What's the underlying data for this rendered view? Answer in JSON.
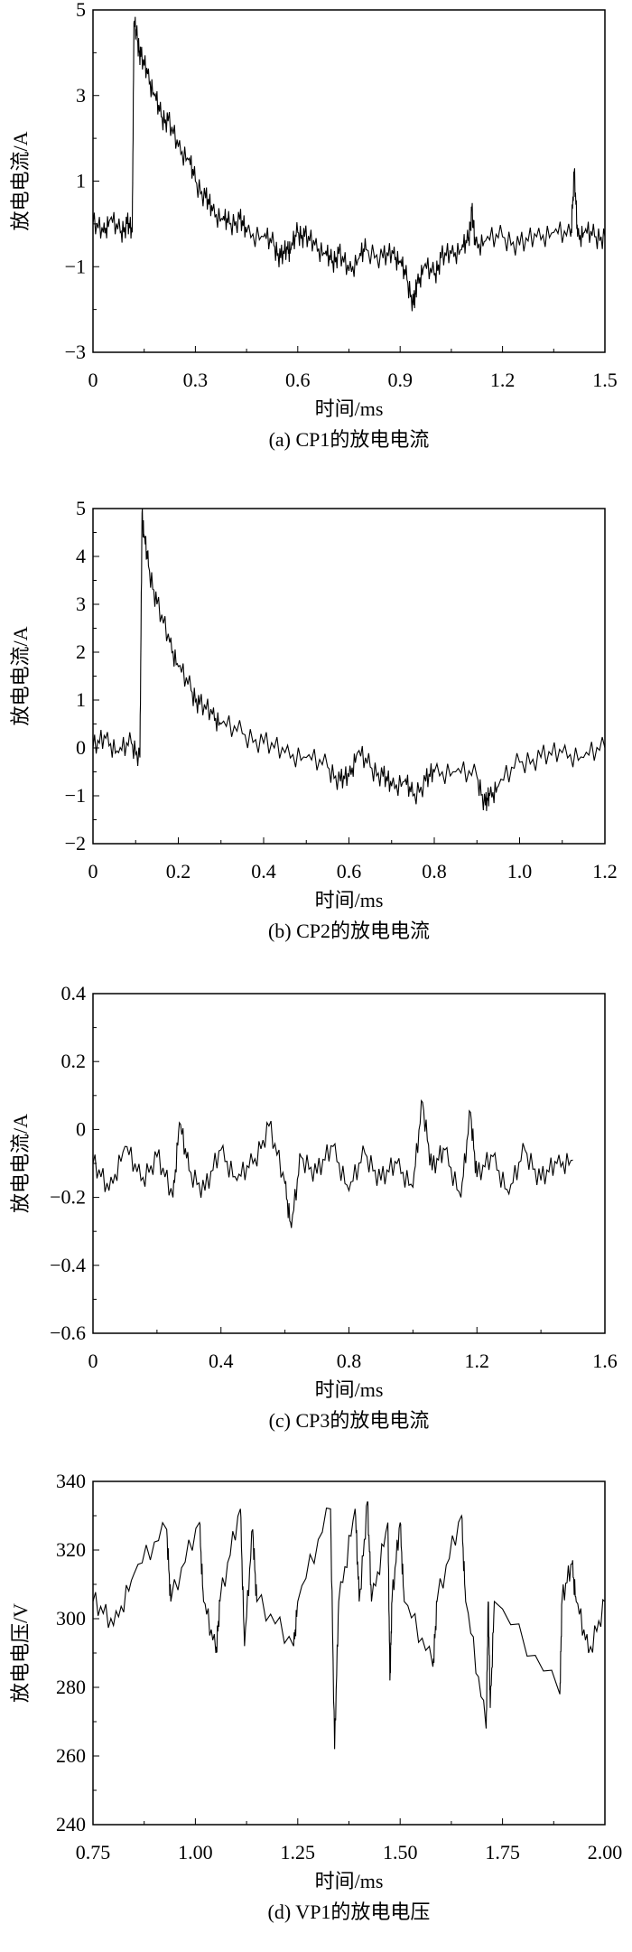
{
  "chart_data": [
    {
      "type": "line",
      "caption": "(a) CP1的放电电流",
      "xlabel": "时间/ms",
      "ylabel": "放电电流/A",
      "xlim": [
        0,
        1.5
      ],
      "ylim": [
        -3,
        5
      ],
      "xticks": [
        "0",
        "0.3",
        "0.6",
        "0.9",
        "1.2",
        "1.5"
      ],
      "yticks": [
        "-3",
        "-1",
        "1",
        "3",
        "5"
      ],
      "x": [
        0,
        0.03,
        0.05,
        0.08,
        0.1,
        0.115,
        0.12,
        0.13,
        0.14,
        0.16,
        0.18,
        0.2,
        0.22,
        0.25,
        0.28,
        0.3,
        0.33,
        0.35,
        0.38,
        0.4,
        0.43,
        0.45,
        0.5,
        0.53,
        0.55,
        0.57,
        0.58,
        0.6,
        0.62,
        0.65,
        0.68,
        0.7,
        0.72,
        0.75,
        0.78,
        0.8,
        0.85,
        0.88,
        0.9,
        0.92,
        0.94,
        0.95,
        0.97,
        1.0,
        1.02,
        1.05,
        1.08,
        1.1,
        1.11,
        1.12,
        1.15,
        1.2,
        1.25,
        1.3,
        1.35,
        1.4,
        1.41,
        1.42,
        1.44,
        1.47,
        1.5
      ],
      "y": [
        0,
        -0.2,
        0.1,
        -0.2,
        0,
        -0.2,
        4.7,
        4.3,
        3.9,
        3.5,
        3.0,
        2.5,
        2.4,
        1.8,
        1.5,
        1.0,
        0.6,
        0.3,
        0.1,
        0,
        0.1,
        -0.2,
        -0.3,
        -0.5,
        -0.8,
        -0.6,
        -0.6,
        -0.2,
        -0.3,
        -0.5,
        -0.7,
        -0.9,
        -0.7,
        -1.1,
        -0.8,
        -0.6,
        -0.8,
        -0.7,
        -0.9,
        -1.3,
        -1.9,
        -1.4,
        -1.0,
        -1.2,
        -0.8,
        -0.7,
        -0.6,
        -0.4,
        0.3,
        -0.5,
        -0.4,
        -0.3,
        -0.5,
        -0.3,
        -0.2,
        -0.3,
        1.2,
        -0.3,
        -0.2,
        -0.3,
        -0.3
      ]
    },
    {
      "type": "line",
      "caption": "(b) CP2的放电电流",
      "xlabel": "时间/ms",
      "ylabel": "放电电流/A",
      "xlim": [
        0,
        1.2
      ],
      "ylim": [
        -2,
        5
      ],
      "xticks": [
        "0",
        "0.2",
        "0.4",
        "0.6",
        "0.8",
        "1.0",
        "1.2"
      ],
      "yticks": [
        "-2",
        "-1",
        "0",
        "1",
        "2",
        "3",
        "4",
        "5"
      ],
      "x": [
        0,
        0.03,
        0.06,
        0.09,
        0.11,
        0.115,
        0.12,
        0.13,
        0.15,
        0.18,
        0.2,
        0.23,
        0.25,
        0.28,
        0.3,
        0.35,
        0.4,
        0.45,
        0.5,
        0.55,
        0.58,
        0.6,
        0.62,
        0.65,
        0.68,
        0.7,
        0.73,
        0.75,
        0.78,
        0.8,
        0.85,
        0.9,
        0.92,
        0.93,
        0.95,
        1.0,
        1.05,
        1.1,
        1.15,
        1.2
      ],
      "y": [
        0,
        0.2,
        -0.1,
        0.1,
        -0.2,
        4.9,
        4.4,
        3.8,
        3.0,
        2.2,
        1.7,
        1.2,
        0.9,
        0.7,
        0.5,
        0.3,
        0.1,
        -0.1,
        -0.2,
        -0.4,
        -0.7,
        -0.6,
        -0.1,
        -0.4,
        -0.6,
        -0.8,
        -0.7,
        -1.0,
        -0.7,
        -0.5,
        -0.5,
        -0.6,
        -1.2,
        -1.0,
        -0.8,
        -0.3,
        -0.2,
        -0.1,
        -0.2,
        0
      ]
    },
    {
      "type": "line",
      "caption": "(c) CP3的放电电流",
      "xlabel": "时间/ms",
      "ylabel": "放电电流/A",
      "xlim": [
        0,
        1.6
      ],
      "ylim": [
        -0.6,
        0.4
      ],
      "xticks": [
        "0",
        "0.4",
        "0.8",
        "1.2",
        "1.6"
      ],
      "yticks": [
        "-0.6",
        "-0.4",
        "-0.2",
        "0",
        "0.2",
        "0.4"
      ],
      "x": [
        0,
        0.05,
        0.1,
        0.15,
        0.2,
        0.25,
        0.27,
        0.3,
        0.35,
        0.4,
        0.45,
        0.5,
        0.55,
        0.6,
        0.62,
        0.65,
        0.7,
        0.75,
        0.8,
        0.85,
        0.9,
        0.95,
        1.0,
        1.03,
        1.06,
        1.1,
        1.15,
        1.18,
        1.2,
        1.25,
        1.3,
        1.35,
        1.4,
        1.45,
        1.5
      ],
      "y": [
        -0.1,
        -0.18,
        -0.05,
        -0.15,
        -0.08,
        -0.2,
        0.02,
        -0.12,
        -0.18,
        -0.06,
        -0.15,
        -0.1,
        0.01,
        -0.16,
        -0.29,
        -0.08,
        -0.13,
        -0.05,
        -0.18,
        -0.07,
        -0.15,
        -0.1,
        -0.17,
        0.08,
        -0.12,
        -0.06,
        -0.2,
        0.05,
        -0.14,
        -0.08,
        -0.19,
        -0.06,
        -0.15,
        -0.1,
        -0.09
      ]
    },
    {
      "type": "line",
      "caption": "(d) VP1的放电电压",
      "xlabel": "时间/ms",
      "ylabel": "放电电压/V",
      "xlim": [
        0.75,
        2.0
      ],
      "ylim": [
        240,
        340
      ],
      "xticks": [
        "0.75",
        "1.00",
        "1.25",
        "1.50",
        "1.75",
        "2.00"
      ],
      "yticks": [
        "240",
        "260",
        "280",
        "300",
        "320",
        "340"
      ],
      "x": [
        0.75,
        0.8,
        0.85,
        0.93,
        0.94,
        1.01,
        1.02,
        1.05,
        1.06,
        1.11,
        1.12,
        1.14,
        1.15,
        1.24,
        1.25,
        1.33,
        1.34,
        1.35,
        1.39,
        1.4,
        1.42,
        1.43,
        1.47,
        1.475,
        1.48,
        1.5,
        1.51,
        1.58,
        1.59,
        1.65,
        1.66,
        1.71,
        1.715,
        1.72,
        1.73,
        1.89,
        1.895,
        1.92,
        1.93,
        1.96,
        2.0
      ],
      "y": [
        305,
        298,
        313,
        326,
        305,
        328,
        305,
        290,
        305,
        332,
        292,
        326,
        305,
        292,
        305,
        332,
        262,
        305,
        332,
        305,
        334,
        305,
        328,
        282,
        305,
        328,
        305,
        286,
        305,
        330,
        305,
        268,
        305,
        274,
        305,
        278,
        305,
        316,
        305,
        290,
        305
      ]
    }
  ]
}
